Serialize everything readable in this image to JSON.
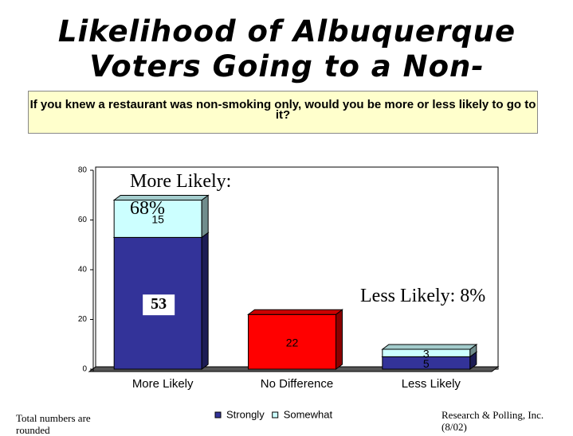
{
  "chart_data": {
    "type": "bar3d_stacked",
    "title": "Likelihood of Albuquerque Voters Going to a Non-",
    "subtitle": "If you knew a restaurant was non-smoking only, would you be more or less likely to go to it?",
    "categories": [
      "More Likely",
      "No Difference",
      "Less Likely"
    ],
    "series": [
      {
        "name": "Strongly",
        "color": "#333399",
        "point_colors": [
          "#333399",
          "#ff0000",
          "#333399"
        ],
        "values": [
          53,
          22,
          5
        ]
      },
      {
        "name": "Somewhat",
        "color": "#ccffff",
        "values": [
          15,
          null,
          3
        ]
      }
    ],
    "ylim": [
      0,
      80
    ],
    "yticks": [
      0,
      20,
      40,
      60,
      80
    ],
    "annotations": [
      "More Likely: 68%",
      "Less Likely: 8%"
    ],
    "footnotes": [
      "Total numbers are rounded",
      "Research & Polling, Inc. (8/02)"
    ],
    "legend": "bottom"
  }
}
